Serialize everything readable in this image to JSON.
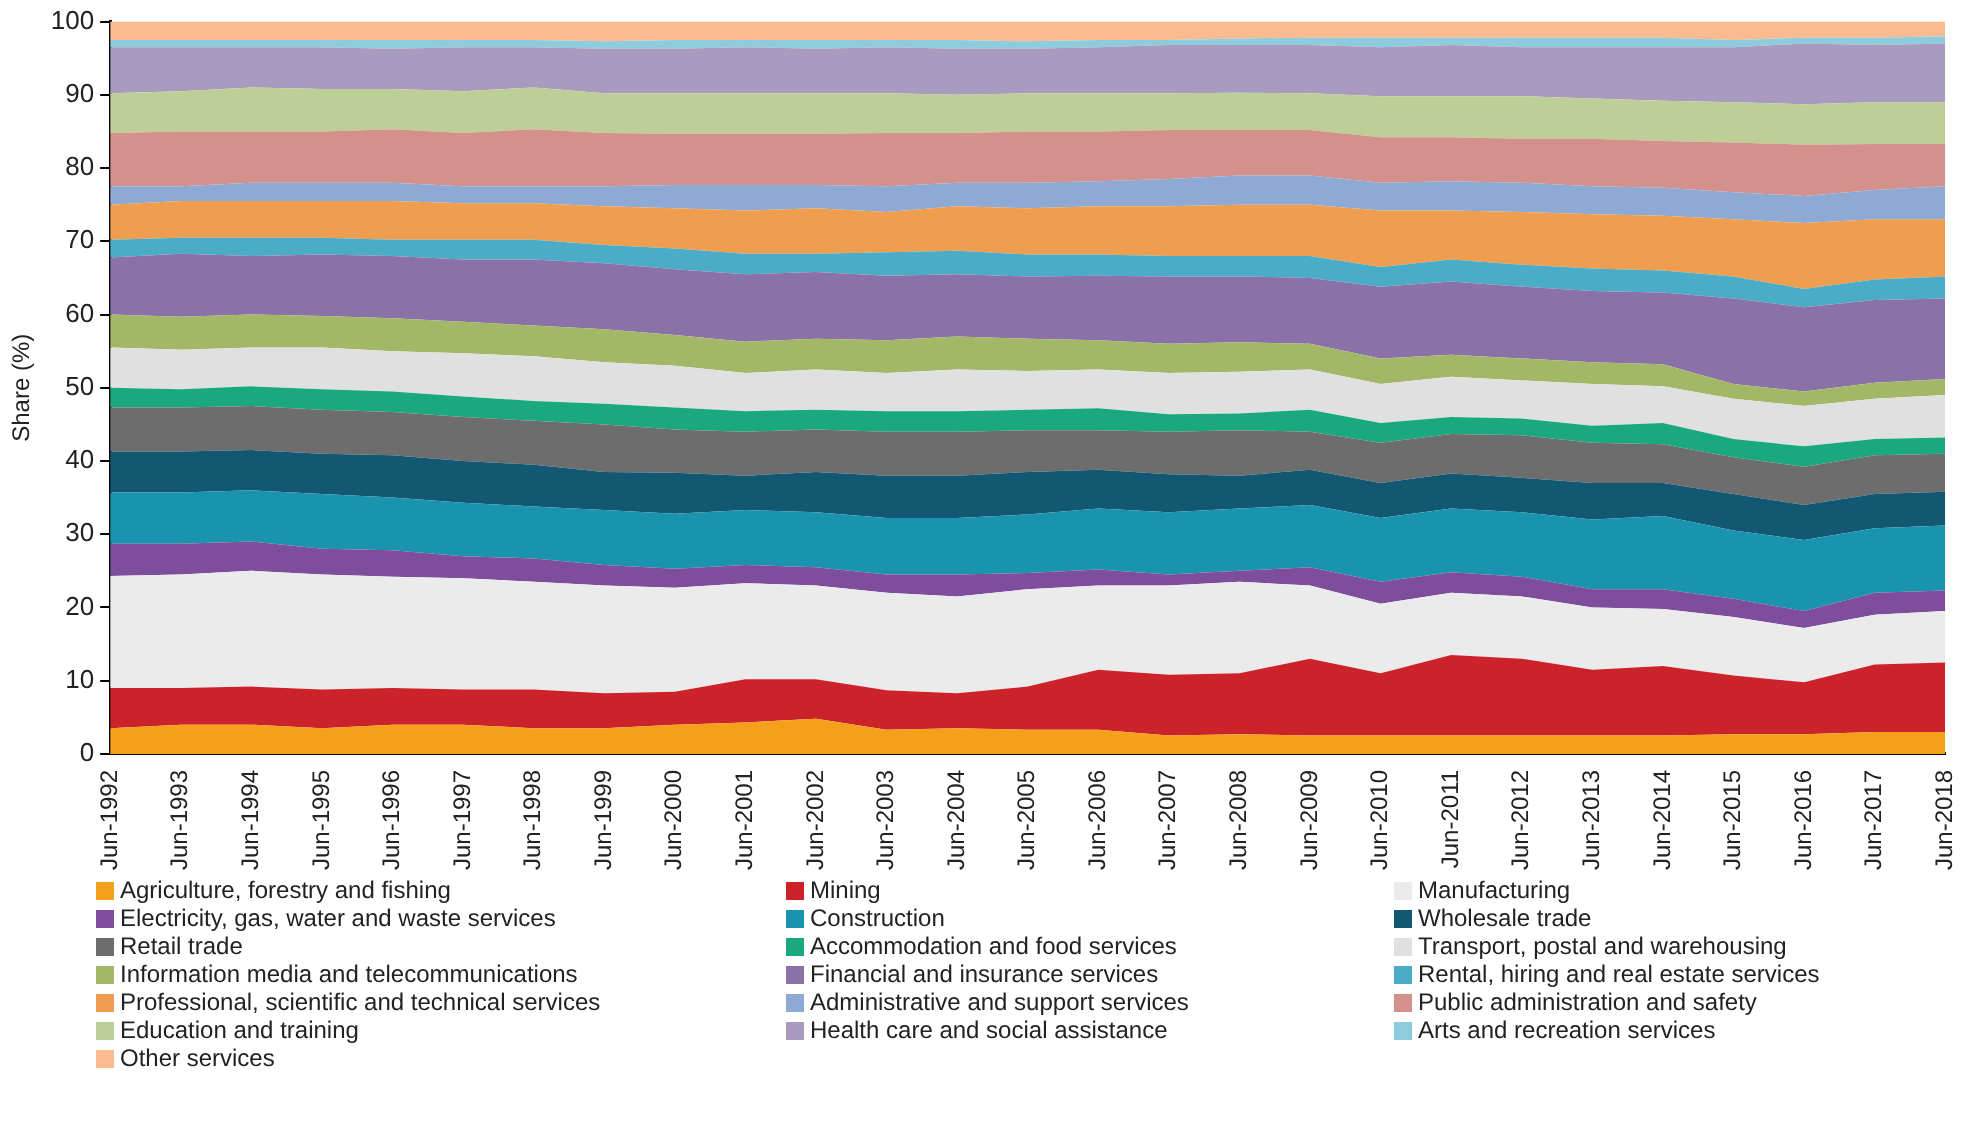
{
  "chart_data": {
    "type": "area",
    "stacked": true,
    "ylabel": "Share (%)",
    "ylim": [
      0,
      100
    ],
    "yticks": [
      0,
      10,
      20,
      30,
      40,
      50,
      60,
      70,
      80,
      90,
      100
    ],
    "legend": "bottom",
    "categories": [
      "Jun-1992",
      "Jun-1993",
      "Jun-1994",
      "Jun-1995",
      "Jun-1996",
      "Jun-1997",
      "Jun-1998",
      "Jun-1999",
      "Jun-2000",
      "Jun-2001",
      "Jun-2002",
      "Jun-2003",
      "Jun-2004",
      "Jun-2005",
      "Jun-2006",
      "Jun-2007",
      "Jun-2008",
      "Jun-2009",
      "Jun-2010",
      "Jun-2011",
      "Jun-2012",
      "Jun-2013",
      "Jun-2014",
      "Jun-2015",
      "Jun-2016",
      "Jun-2017",
      "Jun-2018"
    ],
    "series": [
      {
        "name": "Agriculture, forestry and fishing",
        "color": "#f5a01a",
        "values": [
          3.5,
          4,
          4,
          3.5,
          4,
          4,
          3.5,
          3.5,
          4,
          4.3,
          4.8,
          3.3,
          3.5,
          3.3,
          3.3,
          2.5,
          2.7,
          2.5,
          2.5,
          2.5,
          2.5,
          2.5,
          2.5,
          2.7,
          2.7,
          3,
          3
        ]
      },
      {
        "name": "Mining",
        "color": "#cc2229",
        "values": [
          5.5,
          5,
          5.2,
          5.3,
          5,
          4.8,
          5.3,
          4.8,
          4.5,
          5.9,
          5.4,
          5.4,
          4.8,
          5.9,
          8.2,
          8.3,
          8.3,
          10.5,
          8.5,
          11,
          10.5,
          9,
          9.5,
          8,
          7.1,
          9.2,
          9.5
        ]
      },
      {
        "name": "Manufacturing",
        "color": "#ebebeb",
        "values": [
          15.3,
          15.5,
          15.8,
          15.7,
          15.2,
          15.2,
          14.7,
          14.7,
          14.2,
          13.1,
          12.8,
          13.3,
          13.2,
          13.3,
          11.5,
          12.2,
          12.5,
          10,
          9.5,
          8.5,
          8.5,
          8.5,
          7.8,
          8,
          7.4,
          6.8,
          7
        ]
      },
      {
        "name": "Electricity, gas, water and waste services",
        "color": "#7e4d9b",
        "values": [
          4.4,
          4.2,
          4,
          3.5,
          3.6,
          3,
          3.2,
          2.8,
          2.6,
          2.5,
          2.5,
          2.5,
          3,
          2.2,
          2.2,
          1.5,
          1.5,
          2.5,
          3,
          2.8,
          2.7,
          2.5,
          2.7,
          2.5,
          2.3,
          3,
          2.8
        ]
      },
      {
        "name": "Construction",
        "color": "#1a94ae",
        "values": [
          7,
          7,
          7,
          7.5,
          7.2,
          7.3,
          7.1,
          7.5,
          7.5,
          7.5,
          7.5,
          7.7,
          7.7,
          8,
          8.3,
          8.5,
          8.5,
          8.5,
          8.7,
          8.7,
          8.8,
          9.5,
          10,
          9.3,
          9.7,
          8.8,
          8.9
        ]
      },
      {
        "name": "Wholesale trade",
        "color": "#135873",
        "values": [
          5.6,
          5.6,
          5.5,
          5.5,
          5.8,
          5.7,
          5.7,
          5.2,
          5.6,
          4.7,
          5.5,
          5.8,
          5.8,
          5.8,
          5.3,
          5.2,
          4.5,
          4.8,
          4.8,
          4.8,
          4.7,
          5,
          4.5,
          5,
          4.8,
          4.7,
          4.6
        ]
      },
      {
        "name": "Retail trade",
        "color": "#6d6d6d",
        "values": [
          6,
          6,
          6,
          6,
          5.9,
          6,
          6,
          6.5,
          5.9,
          6,
          5.8,
          6,
          6,
          5.7,
          5.4,
          5.8,
          6.2,
          5.2,
          5.5,
          5.4,
          5.8,
          5.5,
          5.3,
          5,
          5.2,
          5.3,
          5.2
        ]
      },
      {
        "name": "Accommodation and food services",
        "color": "#1aa97f",
        "values": [
          2.7,
          2.5,
          2.7,
          2.8,
          2.8,
          2.8,
          2.7,
          2.8,
          3,
          2.8,
          2.7,
          2.8,
          2.8,
          2.8,
          3,
          2.4,
          2.3,
          3,
          2.7,
          2.3,
          2.3,
          2.3,
          2.9,
          2.5,
          2.8,
          2.2,
          2.2
        ]
      },
      {
        "name": "Transport, postal and warehousing",
        "color": "#e0e0e0",
        "values": [
          5.5,
          5.4,
          5.3,
          5.7,
          5.5,
          5.9,
          6.1,
          5.7,
          5.7,
          5.2,
          5.5,
          5.2,
          5.7,
          5.3,
          5.3,
          5.6,
          5.7,
          5.5,
          5.3,
          5.5,
          5.2,
          5.7,
          5,
          5.5,
          5.5,
          5.5,
          5.8
        ]
      },
      {
        "name": "Information media and telecommunications",
        "color": "#a2b866",
        "values": [
          4.5,
          4.5,
          4.5,
          4.3,
          4.5,
          4.3,
          4.2,
          4.5,
          4.2,
          4.3,
          4.2,
          4.5,
          4.5,
          4.4,
          4,
          4,
          4,
          3.5,
          3.5,
          3,
          3,
          3,
          3,
          2,
          2,
          2.2,
          2.2
        ]
      },
      {
        "name": "Financial and insurance services",
        "color": "#8a72a8",
        "values": [
          7.8,
          8.6,
          8,
          8.4,
          8.5,
          8.5,
          9,
          9,
          9,
          9.2,
          9.1,
          8.8,
          8.5,
          8.5,
          8.8,
          9.2,
          9,
          9,
          9.8,
          10,
          9.8,
          9.7,
          9.8,
          11.7,
          11.5,
          11.3,
          11
        ]
      },
      {
        "name": "Rental, hiring and real estate services",
        "color": "#4aacc6",
        "values": [
          2.4,
          2.2,
          2.5,
          2.3,
          2.2,
          2.7,
          2.7,
          2.5,
          2.8,
          2.8,
          2.5,
          3.2,
          3.2,
          3,
          2.9,
          2.8,
          2.8,
          3,
          2.7,
          3,
          3,
          3.1,
          3,
          3,
          2.5,
          2.8,
          3
        ]
      },
      {
        "name": "Professional, scientific and technical services",
        "color": "#ef9e50",
        "values": [
          4.8,
          5,
          5,
          5,
          5.3,
          5,
          5,
          5.3,
          5.5,
          5.9,
          6.2,
          5.5,
          6.1,
          6.3,
          6.6,
          6.8,
          7,
          7,
          7.7,
          6.7,
          7.2,
          7.4,
          7.5,
          7.8,
          9,
          8.2,
          7.8
        ]
      },
      {
        "name": "Administrative and support services",
        "color": "#8eaad4",
        "values": [
          2.5,
          2,
          2.5,
          2.5,
          2.5,
          2.3,
          2.3,
          2.7,
          3.2,
          3.5,
          3.2,
          3.5,
          3.2,
          3.5,
          3.4,
          3.7,
          4,
          4,
          3.8,
          4,
          4,
          3.8,
          3.8,
          3.7,
          3.7,
          4,
          4.5
        ]
      },
      {
        "name": "Public administration and safety",
        "color": "#d4908b",
        "values": [
          7.3,
          7.5,
          7,
          7,
          7.3,
          7.3,
          7.8,
          7.3,
          7,
          7,
          7,
          7.3,
          6.8,
          7,
          6.8,
          6.7,
          6.2,
          6.2,
          6.2,
          6,
          6,
          6.5,
          6.4,
          6.8,
          7,
          6.3,
          5.8
        ]
      },
      {
        "name": "Education and training",
        "color": "#bdcf97",
        "values": [
          5.4,
          5.5,
          6,
          5.8,
          5.5,
          5.7,
          5.7,
          5.4,
          5.5,
          5.5,
          5.5,
          5.4,
          5.2,
          5.2,
          5.2,
          5,
          5.1,
          5,
          5.6,
          5.6,
          5.8,
          5.5,
          5.5,
          5.5,
          5.5,
          5.7,
          5.7
        ]
      },
      {
        "name": "Health care and social assistance",
        "color": "#a99abf",
        "values": [
          6.3,
          6,
          5.5,
          5.7,
          5.5,
          6,
          5.5,
          6.1,
          6.1,
          6.3,
          6.1,
          6.3,
          6.3,
          6.1,
          6.3,
          6.6,
          6.5,
          6.6,
          6.7,
          7,
          6.7,
          7,
          7.3,
          7.5,
          8.3,
          7.8,
          8
        ]
      },
      {
        "name": "Arts and recreation services",
        "color": "#8ecbdc",
        "values": [
          1,
          1,
          1,
          1,
          1.2,
          1,
          1,
          1,
          1.2,
          1,
          1.2,
          1,
          1.2,
          1,
          1,
          0.7,
          0.9,
          1,
          1.3,
          1,
          1.3,
          1.3,
          1.3,
          1,
          0.8,
          1,
          1
        ]
      },
      {
        "name": "Other services",
        "color": "#f9bb8f",
        "values": [
          2.5,
          2.5,
          2.5,
          2.5,
          2.5,
          2.5,
          2.5,
          2.7,
          2.5,
          2.5,
          2.5,
          2.5,
          2.5,
          2.7,
          2.5,
          2.5,
          2.3,
          2.2,
          2.2,
          2.2,
          2.2,
          2.2,
          2.2,
          2.5,
          2.2,
          2.2,
          2
        ]
      }
    ]
  }
}
